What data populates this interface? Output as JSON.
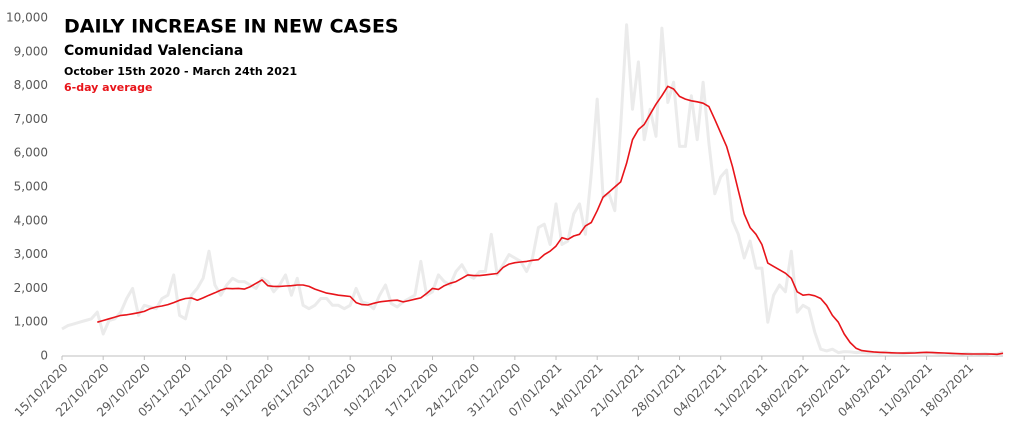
{
  "chart_data": {
    "type": "line",
    "title": "DAILY INCREASE IN NEW CASES",
    "subtitle": "Comunidad Valenciana",
    "date_range": "October 15th 2020 - March 24th 2021",
    "categories": [
      "15/10/2020",
      null,
      null,
      null,
      null,
      null,
      null,
      "22/10/2020",
      null,
      null,
      null,
      null,
      null,
      null,
      "29/10/2020",
      null,
      null,
      null,
      null,
      null,
      null,
      "05/11/2020",
      null,
      null,
      null,
      null,
      null,
      null,
      "12/11/2020",
      null,
      null,
      null,
      null,
      null,
      null,
      "19/11/2020",
      null,
      null,
      null,
      null,
      null,
      null,
      "26/11/2020",
      null,
      null,
      null,
      null,
      null,
      null,
      "03/12/2020",
      null,
      null,
      null,
      null,
      null,
      null,
      "10/12/2020",
      null,
      null,
      null,
      null,
      null,
      null,
      "17/12/2020",
      null,
      null,
      null,
      null,
      null,
      null,
      "24/12/2020",
      null,
      null,
      null,
      null,
      null,
      null,
      "31/12/2020",
      null,
      null,
      null,
      null,
      null,
      null,
      "07/01/2021",
      null,
      null,
      null,
      null,
      null,
      null,
      "14/01/2021",
      null,
      null,
      null,
      null,
      null,
      null,
      "21/01/2021",
      null,
      null,
      null,
      null,
      null,
      null,
      "28/01/2021",
      null,
      null,
      null,
      null,
      null,
      null,
      "04/02/2021",
      null,
      null,
      null,
      null,
      null,
      null,
      "11/02/2021",
      null,
      null,
      null,
      null,
      null,
      null,
      "18/02/2021",
      null,
      null,
      null,
      null,
      null,
      null,
      "25/02/2021",
      null,
      null,
      null,
      null,
      null,
      null,
      "04/03/2021",
      null,
      null,
      null,
      null,
      null,
      null,
      "11/03/2021",
      null,
      null,
      null,
      null,
      null,
      null,
      "18/03/2021",
      null,
      null,
      null,
      null,
      null,
      null
    ],
    "series": [
      {
        "color": "#ebebeb",
        "values": [
          800,
          900,
          950,
          1000,
          1050,
          1100,
          1300,
          650,
          1050,
          1100,
          1300,
          1700,
          2000,
          1200,
          1500,
          1450,
          1400,
          1700,
          1800,
          2400,
          1200,
          1100,
          1800,
          2000,
          2300,
          3100,
          2100,
          1800,
          2100,
          2300,
          2200,
          2200,
          2100,
          2000,
          2300,
          2200,
          1900,
          2100,
          2400,
          1800,
          2300,
          1500,
          1400,
          1500,
          1700,
          1700,
          1500,
          1500,
          1400,
          1500,
          2000,
          1600,
          1550,
          1400,
          1800,
          2100,
          1550,
          1450,
          1600,
          1700,
          1800,
          2800,
          1800,
          1900,
          2400,
          2200,
          2100,
          2500,
          2700,
          2400,
          2300,
          2500,
          2500,
          3600,
          2400,
          2700,
          3000,
          2900,
          2800,
          2500,
          2900,
          3800,
          3900,
          3300,
          4500,
          3300,
          3400,
          4200,
          4500,
          3600,
          5400,
          7600,
          4700,
          4800,
          4300,
          6800,
          9800,
          7300,
          8700,
          6400,
          7300,
          6500,
          9700,
          7500,
          8100,
          6200,
          6200,
          7700,
          6400,
          8100,
          6300,
          4800,
          5300,
          5500,
          4000,
          3600,
          2900,
          3400,
          2600,
          2600,
          1000,
          1800,
          2100,
          1900,
          3100,
          1300,
          1500,
          1400,
          700,
          200,
          150,
          200,
          100,
          130,
          120,
          100,
          110,
          90,
          100,
          80,
          120,
          90,
          80,
          70,
          100,
          110,
          90,
          80,
          100,
          70,
          60,
          70,
          50,
          60,
          80,
          50,
          60,
          70,
          40,
          60,
          120
        ]
      },
      {
        "name": "6-day average",
        "color": "#e8141a",
        "values": [
          null,
          null,
          null,
          null,
          null,
          null,
          1000,
          1050,
          1100,
          1150,
          1200,
          1220,
          1250,
          1280,
          1320,
          1400,
          1450,
          1480,
          1520,
          1580,
          1650,
          1700,
          1720,
          1650,
          1720,
          1800,
          1870,
          1950,
          2000,
          1990,
          2000,
          1980,
          2050,
          2150,
          2250,
          2080,
          2060,
          2060,
          2070,
          2080,
          2100,
          2100,
          2060,
          1980,
          1920,
          1860,
          1830,
          1800,
          1780,
          1760,
          1580,
          1520,
          1510,
          1560,
          1600,
          1620,
          1640,
          1650,
          1600,
          1640,
          1680,
          1720,
          1850,
          2000,
          1970,
          2080,
          2150,
          2200,
          2300,
          2400,
          2380,
          2380,
          2400,
          2420,
          2440,
          2620,
          2720,
          2760,
          2780,
          2800,
          2830,
          2850,
          3000,
          3100,
          3250,
          3500,
          3450,
          3550,
          3600,
          3850,
          3950,
          4300,
          4700,
          4850,
          5000,
          5150,
          5700,
          6400,
          6700,
          6850,
          7150,
          7450,
          7700,
          7980,
          7900,
          7680,
          7600,
          7550,
          7520,
          7480,
          7380,
          7000,
          6600,
          6200,
          5600,
          4900,
          4200,
          3800,
          3600,
          3300,
          2750,
          2650,
          2550,
          2450,
          2300,
          1900,
          1800,
          1820,
          1780,
          1700,
          1500,
          1200,
          1000,
          650,
          400,
          230,
          160,
          140,
          120,
          110,
          100,
          95,
          90,
          85,
          85,
          90,
          100,
          110,
          100,
          95,
          90,
          80,
          70,
          65,
          60,
          60,
          60,
          60,
          55,
          50,
          80
        ]
      }
    ],
    "ylim": [
      0,
      10000
    ],
    "yticks": [
      0,
      {
        "value": 1000,
        "label": "1,000"
      },
      {
        "value": 2000,
        "label": "2,000"
      },
      {
        "value": 3000,
        "label": "3,000"
      },
      {
        "value": 4000,
        "label": "4,000"
      },
      {
        "value": 5000,
        "label": "5,000"
      },
      {
        "value": 6000,
        "label": "6,000"
      },
      {
        "value": 7000,
        "label": "7,000"
      },
      {
        "value": 8000,
        "label": "8,000"
      },
      {
        "value": 9000,
        "label": "9,000"
      },
      {
        "value": 10000,
        "label": "10,000"
      }
    ]
  }
}
